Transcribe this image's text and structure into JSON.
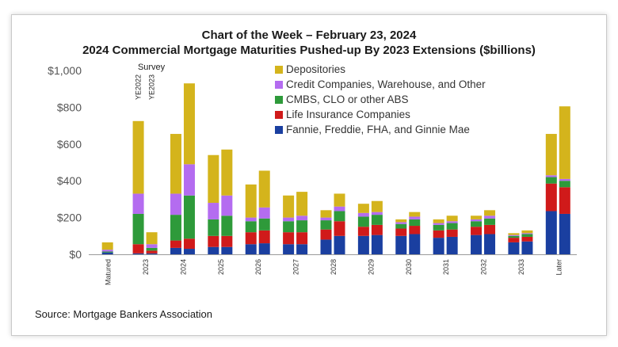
{
  "title": "Chart of the Week – February 23, 2024",
  "subtitle": "2024 Commercial Mortgage Maturities Pushed-up By 2023 Extensions ($billions)",
  "source": "Source: Mortgage Bankers Association",
  "chart_data": {
    "type": "bar",
    "stacked": true,
    "title": "Chart of the Week – February 23, 2024",
    "subtitle": "2024 Commercial Mortgage Maturities Pushed-up By 2023 Extensions ($billions)",
    "ylim": [
      0,
      1000
    ],
    "yticks": [
      0,
      200,
      400,
      600,
      800,
      1000
    ],
    "ytick_labels": [
      "$0",
      "$200",
      "$400",
      "$600",
      "$800",
      "$1,000"
    ],
    "grid": false,
    "legend_position": "top",
    "survey_annotation": {
      "title": "Survey",
      "labels": [
        "YE2022",
        "YE2023"
      ]
    },
    "categories": [
      "Matured",
      "2023",
      "2024",
      "2025",
      "2026",
      "2027",
      "2028",
      "2029",
      "2030",
      "2031",
      "2032",
      "2033",
      "Later"
    ],
    "bar_groups": [
      {
        "category": "Matured",
        "bars": [
          [
            10,
            0,
            5,
            10,
            40
          ]
        ]
      },
      {
        "category": "2023",
        "bars": [
          [
            5,
            50,
            165,
            110,
            395
          ],
          [
            5,
            15,
            15,
            20,
            65
          ]
        ]
      },
      {
        "category": "2024",
        "bars": [
          [
            35,
            40,
            140,
            115,
            325
          ],
          [
            30,
            55,
            235,
            170,
            440
          ]
        ]
      },
      {
        "category": "2025",
        "bars": [
          [
            40,
            60,
            90,
            90,
            260
          ],
          [
            40,
            60,
            110,
            110,
            250
          ]
        ]
      },
      {
        "category": "2026",
        "bars": [
          [
            55,
            65,
            60,
            20,
            180
          ],
          [
            60,
            70,
            65,
            60,
            200
          ]
        ]
      },
      {
        "category": "2027",
        "bars": [
          [
            55,
            65,
            60,
            20,
            120
          ],
          [
            55,
            65,
            65,
            25,
            130
          ]
        ]
      },
      {
        "category": "2028",
        "bars": [
          [
            80,
            55,
            50,
            15,
            40
          ],
          [
            100,
            80,
            55,
            25,
            70
          ]
        ]
      },
      {
        "category": "2029",
        "bars": [
          [
            100,
            50,
            55,
            20,
            50
          ],
          [
            105,
            55,
            55,
            15,
            60
          ]
        ]
      },
      {
        "category": "2030",
        "bars": [
          [
            100,
            40,
            25,
            10,
            15
          ],
          [
            110,
            45,
            35,
            15,
            25
          ]
        ]
      },
      {
        "category": "2031",
        "bars": [
          [
            90,
            40,
            30,
            10,
            20
          ],
          [
            95,
            40,
            35,
            10,
            30
          ]
        ]
      },
      {
        "category": "2032",
        "bars": [
          [
            105,
            45,
            30,
            10,
            20
          ],
          [
            110,
            50,
            35,
            15,
            30
          ]
        ]
      },
      {
        "category": "2033",
        "bars": [
          [
            65,
            25,
            10,
            5,
            10
          ],
          [
            70,
            25,
            15,
            5,
            15
          ]
        ]
      },
      {
        "category": "Later",
        "bars": [
          [
            235,
            150,
            35,
            10,
            225
          ],
          [
            220,
            145,
            35,
            10,
            395
          ]
        ]
      }
    ],
    "series": [
      {
        "name": "Fannie, Freddie, FHA, and Ginnie Mae",
        "color": "#1a3fa0"
      },
      {
        "name": "Life Insurance Companies",
        "color": "#d01a1a"
      },
      {
        "name": "CMBS, CLO or other ABS",
        "color": "#2e9a3a"
      },
      {
        "name": "Credit Companies, Warehouse, and Other",
        "color": "#b46cf0"
      },
      {
        "name": "Depositories",
        "color": "#d4b41c"
      }
    ],
    "legend_order": [
      "Depositories",
      "Credit Companies, Warehouse, and Other",
      "CMBS, CLO or other ABS",
      "Life Insurance Companies",
      "Fannie, Freddie, FHA, and Ginnie Mae"
    ]
  }
}
